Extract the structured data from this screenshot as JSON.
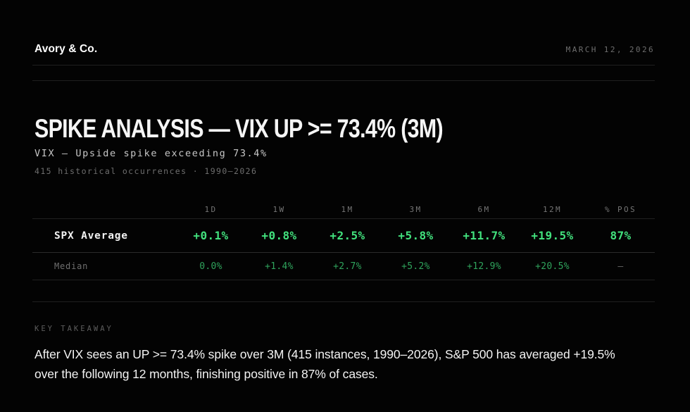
{
  "theme": {
    "bg": "#030303",
    "green_bright": "#42e17d",
    "green_muted": "#2fa35c",
    "text_primary": "#f5f5f5",
    "text_muted": "#6e6e6e",
    "rule": "#202020"
  },
  "header": {
    "brand": "Avory & Co.",
    "date": "MARCH 12, 2026"
  },
  "title": {
    "heading": "SPIKE ANALYSIS — VIX UP >= 73.4% (3M)",
    "subtitle": "VIX — Upside spike exceeding 73.4%",
    "meta": "415 historical occurrences · 1990–2026"
  },
  "table": {
    "columns": [
      "1D",
      "1W",
      "1M",
      "3M",
      "6M",
      "12M",
      "% POS"
    ],
    "rows": [
      {
        "label": "SPX Average",
        "values": [
          "+0.1%",
          "+0.8%",
          "+2.5%",
          "+5.8%",
          "+11.7%",
          "+19.5%",
          "87%"
        ]
      },
      {
        "label": "Median",
        "values": [
          "0.0%",
          "+1.4%",
          "+2.7%",
          "+5.2%",
          "+12.9%",
          "+20.5%",
          "—"
        ]
      }
    ]
  },
  "takeaway": {
    "kicker": "KEY TAKEAWAY",
    "lines": [
      "After VIX sees an UP >= 73.4% spike over 3M (415 instances, 1990–2026), S&P 500 has averaged +19.5%",
      "over the following 12 months, finishing positive in 87% of cases."
    ]
  },
  "chart_data": {
    "type": "table",
    "title": "SPIKE ANALYSIS — VIX UP >= 73.4% (3M)",
    "subtitle": "VIX — Upside spike exceeding 73.4%",
    "occurrences": 415,
    "period": "1990–2026",
    "categories": [
      "1D",
      "1W",
      "1M",
      "3M",
      "6M",
      "12M",
      "% POS"
    ],
    "series": [
      {
        "name": "SPX Average",
        "values": [
          "+0.1%",
          "+0.8%",
          "+2.5%",
          "+5.8%",
          "+11.7%",
          "+19.5%",
          "87%"
        ]
      },
      {
        "name": "Median",
        "values": [
          "0.0%",
          "+1.4%",
          "+2.7%",
          "+5.2%",
          "+12.9%",
          "+20.5%",
          null
        ]
      }
    ]
  }
}
